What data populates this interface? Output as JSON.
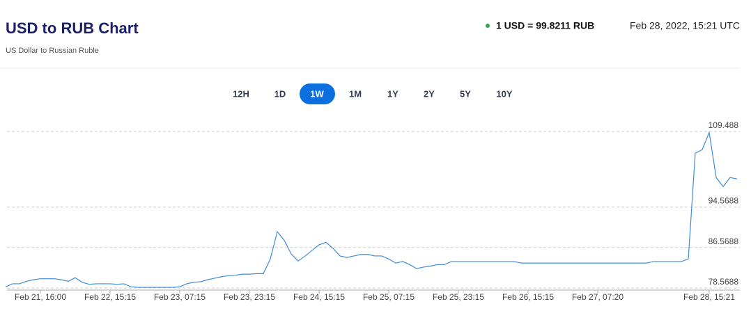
{
  "header": {
    "title": "USD to RUB Chart",
    "subtitle": "US Dollar to Russian Ruble",
    "rate": "1 USD = 99.8211 RUB",
    "timestamp": "Feb 28, 2022, 15:21 UTC"
  },
  "ranges": {
    "buttons": [
      "12H",
      "1D",
      "1W",
      "1M",
      "1Y",
      "2Y",
      "5Y",
      "10Y"
    ],
    "active": "1W"
  },
  "chart_data": {
    "type": "line",
    "categories": [
      null,
      null,
      null,
      null,
      null,
      "Feb 21, 16:00",
      null,
      null,
      null,
      null,
      null,
      null,
      null,
      null,
      null,
      "Feb 22, 15:15",
      null,
      null,
      null,
      null,
      null,
      null,
      null,
      null,
      null,
      "Feb 23, 07:15",
      null,
      null,
      null,
      null,
      null,
      null,
      null,
      null,
      null,
      "Feb 23, 23:15",
      null,
      null,
      null,
      null,
      null,
      null,
      null,
      null,
      null,
      "Feb 24, 15:15",
      null,
      null,
      null,
      null,
      null,
      null,
      null,
      null,
      null,
      "Feb 25, 07:15",
      null,
      null,
      null,
      null,
      null,
      null,
      null,
      null,
      null,
      "Feb 25, 23:15",
      null,
      null,
      null,
      null,
      null,
      null,
      null,
      null,
      null,
      "Feb 26, 15:15",
      null,
      null,
      null,
      null,
      null,
      null,
      null,
      null,
      null,
      "Feb 27, 07:20",
      null,
      null,
      null,
      null,
      null,
      null,
      null,
      null,
      null,
      null,
      null,
      null,
      null,
      null,
      null,
      "Feb 28, 15:21",
      null,
      null,
      null,
      null
    ],
    "values": [
      78.8,
      79.4,
      79.4,
      79.9,
      80.2,
      80.4,
      80.4,
      80.4,
      80.2,
      79.9,
      80.6,
      79.7,
      79.3,
      79.4,
      79.4,
      79.4,
      79.3,
      79.4,
      78.8,
      78.7,
      78.7,
      78.7,
      78.7,
      78.7,
      78.7,
      78.8,
      79.4,
      79.7,
      79.8,
      80.2,
      80.5,
      80.8,
      81.0,
      81.1,
      81.3,
      81.3,
      81.4,
      81.4,
      84.3,
      89.7,
      88.0,
      85.3,
      83.9,
      84.9,
      86.0,
      87.1,
      87.6,
      86.4,
      84.9,
      84.6,
      84.9,
      85.2,
      85.2,
      84.9,
      84.9,
      84.3,
      83.5,
      83.8,
      83.2,
      82.4,
      82.7,
      82.9,
      83.2,
      83.2,
      83.8,
      83.8,
      83.8,
      83.8,
      83.8,
      83.8,
      83.8,
      83.8,
      83.8,
      83.8,
      83.5,
      83.5,
      83.5,
      83.5,
      83.5,
      83.5,
      83.5,
      83.5,
      83.5,
      83.5,
      83.5,
      83.5,
      83.5,
      83.5,
      83.5,
      83.5,
      83.5,
      83.5,
      83.5,
      83.8,
      83.8,
      83.8,
      83.8,
      83.8,
      84.3,
      105.2,
      105.9,
      109.3,
      100.4,
      98.6,
      100.4,
      100.1
    ],
    "color": "#3d8bdb",
    "ylim": [
      78.5688,
      109.488
    ],
    "yticks": [
      78.5688,
      86.5688,
      94.5688,
      109.488
    ],
    "grid": true
  }
}
